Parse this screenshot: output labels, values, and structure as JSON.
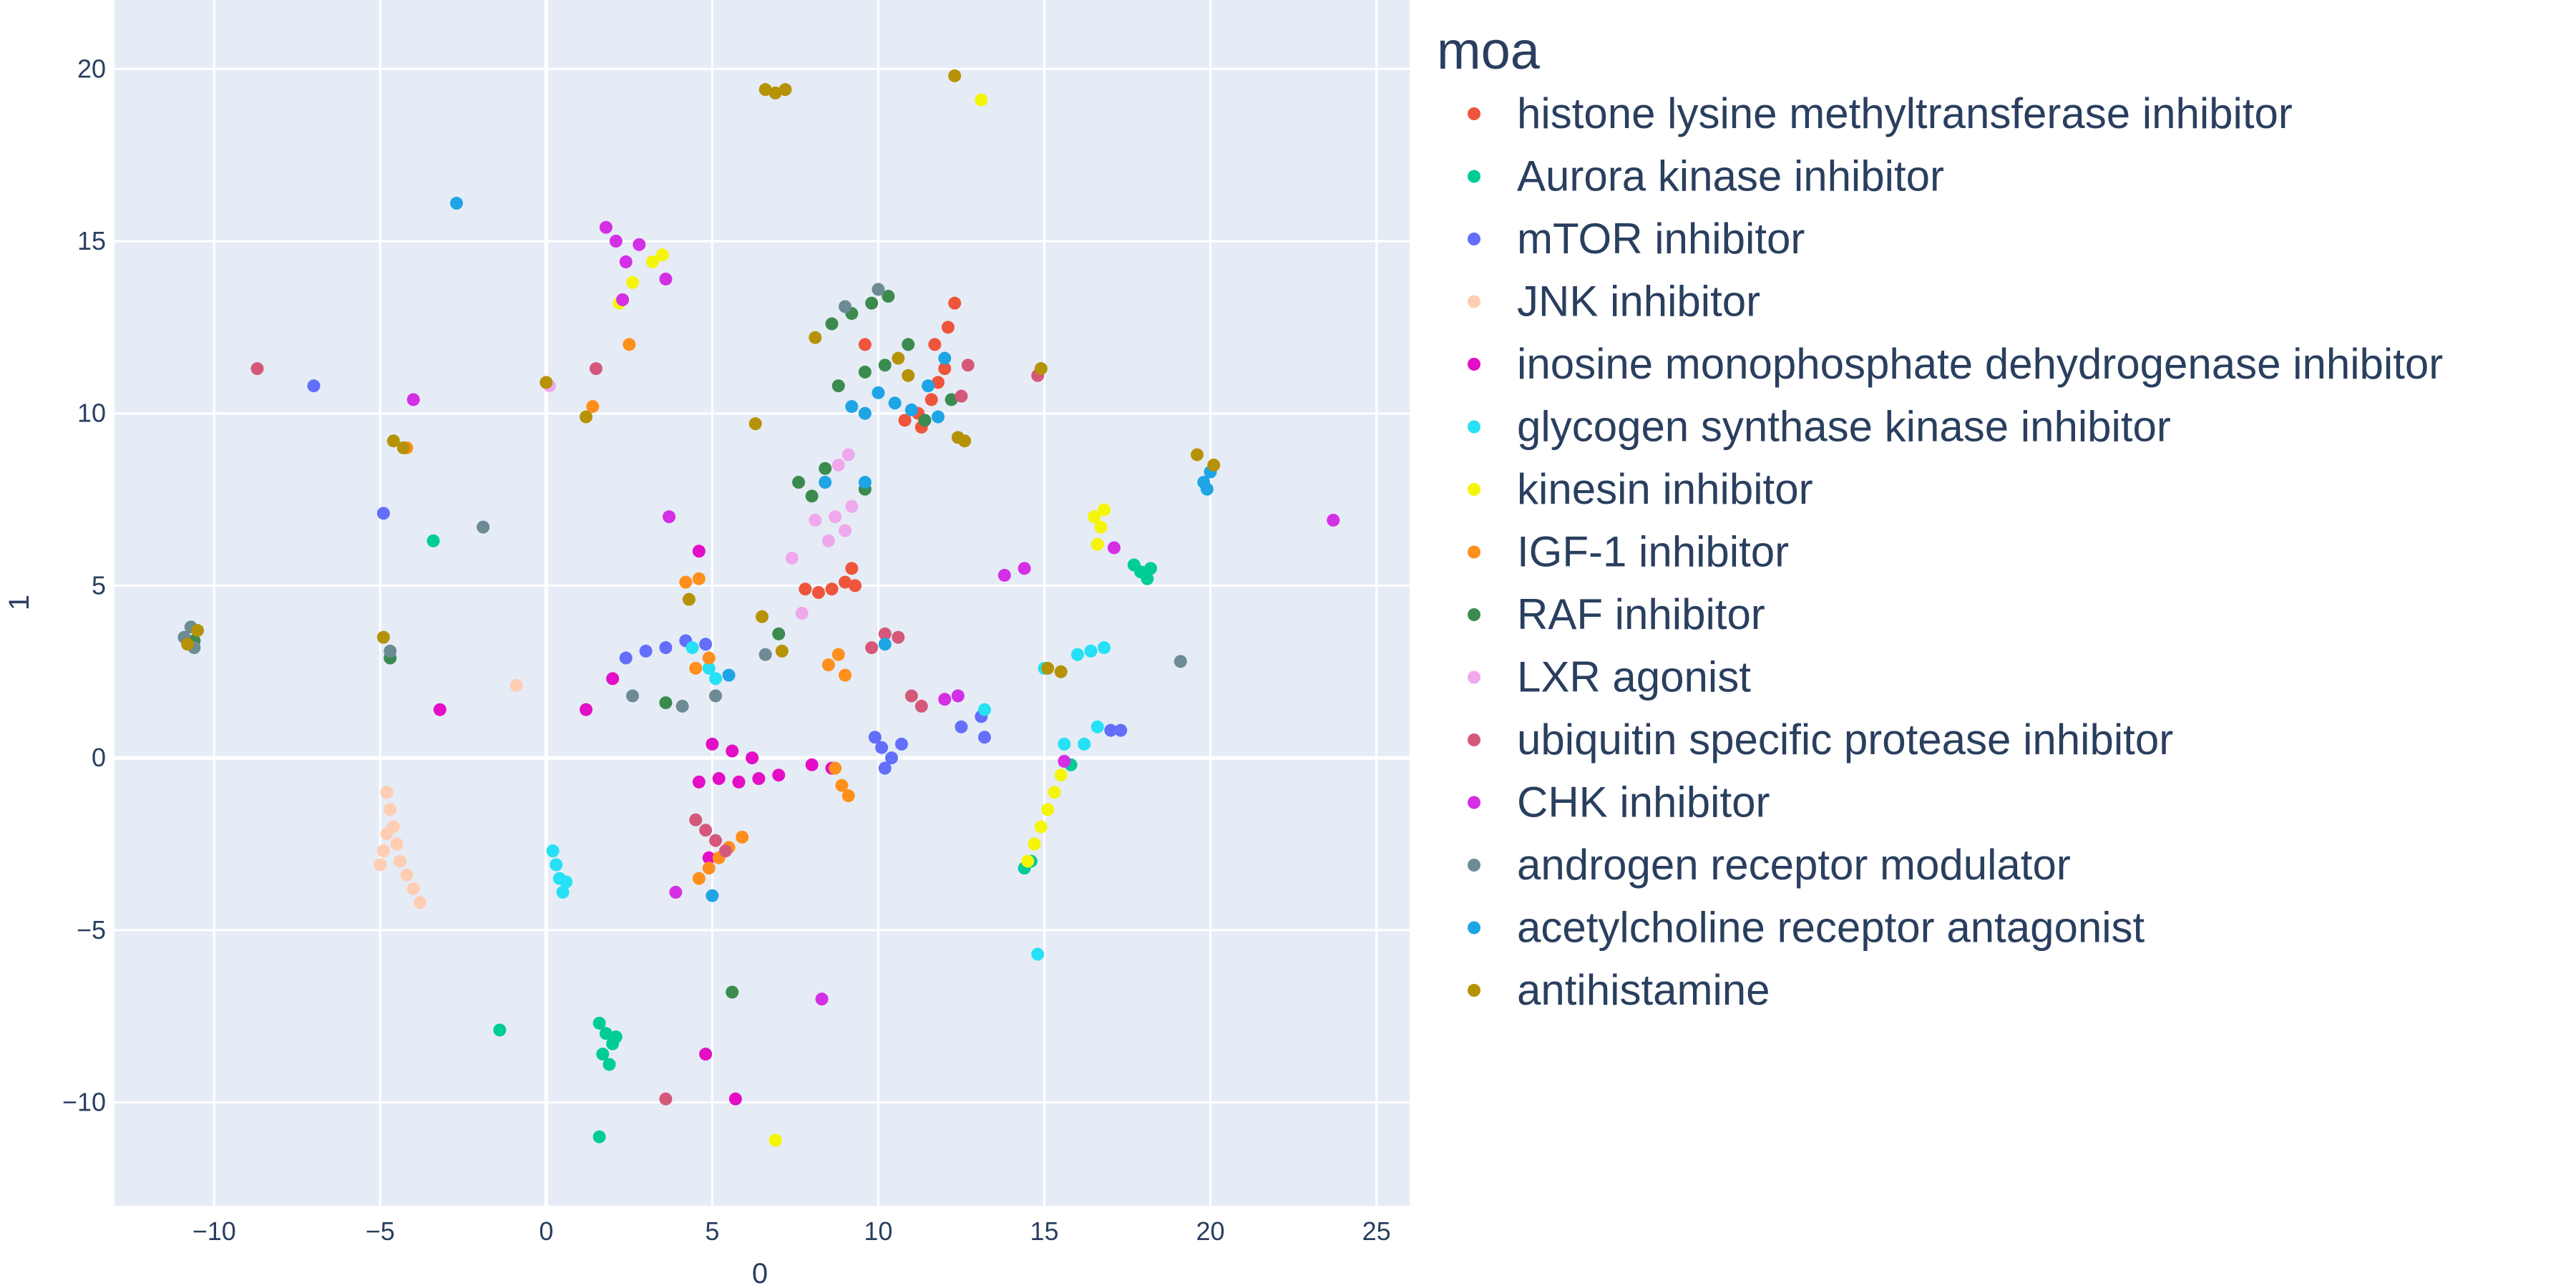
{
  "chart_data": {
    "type": "scatter",
    "xlabel": "0",
    "ylabel": "1",
    "xlim": [
      -13,
      26
    ],
    "ylim": [
      -13,
      22
    ],
    "x_ticks": [
      -10,
      -5,
      0,
      5,
      10,
      15,
      20,
      25
    ],
    "y_ticks": [
      -10,
      -5,
      0,
      5,
      10,
      15,
      20
    ],
    "x_tick_labels": [
      "−10",
      "−5",
      "0",
      "5",
      "10",
      "15",
      "20",
      "25"
    ],
    "y_tick_labels": [
      "−10",
      "−5",
      "0",
      "5",
      "10",
      "15",
      "20"
    ],
    "grid": true,
    "legend": {
      "title": "moa",
      "placement": "right"
    },
    "plot_background": "#e5ecf6",
    "series": [
      {
        "name": "histone lysine methyltransferase inhibitor",
        "color": "#EF553B",
        "points": [
          [
            7.8,
            4.9
          ],
          [
            8.2,
            4.8
          ],
          [
            8.6,
            4.9
          ],
          [
            9.0,
            5.1
          ],
          [
            9.2,
            5.5
          ],
          [
            9.3,
            5.0
          ],
          [
            11.2,
            10.0
          ],
          [
            11.6,
            10.4
          ],
          [
            11.8,
            10.9
          ],
          [
            12.0,
            11.3
          ],
          [
            11.7,
            12.0
          ],
          [
            12.1,
            12.5
          ],
          [
            12.3,
            13.2
          ],
          [
            9.6,
            12.0
          ],
          [
            10.8,
            9.8
          ],
          [
            11.3,
            9.6
          ]
        ]
      },
      {
        "name": "Aurora kinase inhibitor",
        "color": "#00CC96",
        "points": [
          [
            1.6,
            -7.7
          ],
          [
            1.8,
            -8.0
          ],
          [
            2.0,
            -8.3
          ],
          [
            1.7,
            -8.6
          ],
          [
            1.9,
            -8.9
          ],
          [
            2.1,
            -8.1
          ],
          [
            -1.4,
            -7.9
          ],
          [
            1.6,
            -11.0
          ],
          [
            -3.4,
            6.3
          ],
          [
            17.7,
            5.6
          ],
          [
            17.9,
            5.4
          ],
          [
            18.1,
            5.2
          ],
          [
            18.2,
            5.5
          ],
          [
            14.4,
            -3.2
          ],
          [
            14.6,
            -3.0
          ],
          [
            15.8,
            -0.2
          ]
        ]
      },
      {
        "name": "mTOR inhibitor",
        "color": "#636EFA",
        "points": [
          [
            -7.0,
            10.8
          ],
          [
            -4.9,
            7.1
          ],
          [
            2.4,
            2.9
          ],
          [
            3.0,
            3.1
          ],
          [
            3.6,
            3.2
          ],
          [
            4.2,
            3.4
          ],
          [
            4.8,
            3.3
          ],
          [
            9.9,
            0.6
          ],
          [
            10.1,
            0.3
          ],
          [
            10.4,
            0.0
          ],
          [
            10.7,
            0.4
          ],
          [
            10.2,
            -0.3
          ],
          [
            13.1,
            1.2
          ],
          [
            13.2,
            0.6
          ],
          [
            17.0,
            0.8
          ],
          [
            17.3,
            0.8
          ],
          [
            12.5,
            0.9
          ]
        ]
      },
      {
        "name": "JNK inhibitor",
        "color": "#FFCDB2",
        "points": [
          [
            -4.8,
            -1.0
          ],
          [
            -4.7,
            -1.5
          ],
          [
            -4.6,
            -2.0
          ],
          [
            -4.5,
            -2.5
          ],
          [
            -4.4,
            -3.0
          ],
          [
            -4.2,
            -3.4
          ],
          [
            -4.0,
            -3.8
          ],
          [
            -3.8,
            -4.2
          ],
          [
            -4.9,
            -2.7
          ],
          [
            -5.0,
            -3.1
          ],
          [
            -4.8,
            -2.2
          ],
          [
            -0.9,
            2.1
          ]
        ]
      },
      {
        "name": "inosine monophosphate dehydrogenase inhibitor",
        "color": "#E30EC5",
        "points": [
          [
            5.0,
            0.4
          ],
          [
            5.6,
            0.2
          ],
          [
            6.2,
            0.0
          ],
          [
            4.6,
            -0.7
          ],
          [
            5.2,
            -0.6
          ],
          [
            5.8,
            -0.7
          ],
          [
            6.4,
            -0.6
          ],
          [
            7.0,
            -0.5
          ],
          [
            8.0,
            -0.2
          ],
          [
            8.6,
            -0.3
          ],
          [
            2.0,
            2.3
          ],
          [
            1.2,
            1.4
          ],
          [
            4.8,
            -8.6
          ],
          [
            5.7,
            -9.9
          ],
          [
            -3.2,
            1.4
          ],
          [
            4.9,
            -2.9
          ],
          [
            4.6,
            6.0
          ]
        ]
      },
      {
        "name": "glycogen synthase kinase inhibitor",
        "color": "#26E0F5",
        "points": [
          [
            0.2,
            -2.7
          ],
          [
            0.3,
            -3.1
          ],
          [
            0.4,
            -3.5
          ],
          [
            0.5,
            -3.9
          ],
          [
            0.6,
            -3.6
          ],
          [
            16.0,
            3.0
          ],
          [
            16.4,
            3.1
          ],
          [
            16.8,
            3.2
          ],
          [
            15.0,
            2.6
          ],
          [
            15.6,
            0.4
          ],
          [
            16.2,
            0.4
          ],
          [
            16.6,
            0.9
          ],
          [
            13.2,
            1.4
          ],
          [
            4.4,
            3.2
          ],
          [
            4.9,
            2.6
          ],
          [
            5.1,
            2.3
          ],
          [
            14.8,
            -5.7
          ]
        ]
      },
      {
        "name": "kinesin inhibitor",
        "color": "#F5F507",
        "points": [
          [
            14.5,
            -3.0
          ],
          [
            14.7,
            -2.5
          ],
          [
            14.9,
            -2.0
          ],
          [
            15.1,
            -1.5
          ],
          [
            15.3,
            -1.0
          ],
          [
            15.5,
            -0.5
          ],
          [
            16.6,
            6.2
          ],
          [
            16.7,
            6.7
          ],
          [
            16.8,
            7.2
          ],
          [
            16.5,
            7.0
          ],
          [
            13.1,
            19.1
          ],
          [
            6.9,
            -11.1
          ],
          [
            2.2,
            13.2
          ],
          [
            2.6,
            13.8
          ],
          [
            3.2,
            14.4
          ],
          [
            3.5,
            14.6
          ]
        ]
      },
      {
        "name": "IGF-1 inhibitor",
        "color": "#FF8F1C",
        "points": [
          [
            4.6,
            -3.5
          ],
          [
            4.9,
            -3.2
          ],
          [
            5.2,
            -2.9
          ],
          [
            5.5,
            -2.6
          ],
          [
            5.9,
            -2.3
          ],
          [
            4.2,
            5.1
          ],
          [
            4.6,
            5.2
          ],
          [
            4.5,
            2.6
          ],
          [
            4.9,
            2.9
          ],
          [
            8.5,
            2.7
          ],
          [
            8.8,
            3.0
          ],
          [
            9.0,
            2.4
          ],
          [
            8.7,
            -0.3
          ],
          [
            8.9,
            -0.8
          ],
          [
            9.1,
            -1.1
          ],
          [
            -4.2,
            9.0
          ],
          [
            2.5,
            12.0
          ],
          [
            1.4,
            10.2
          ]
        ]
      },
      {
        "name": "RAF inhibitor",
        "color": "#3B8B4F",
        "points": [
          [
            8.6,
            12.6
          ],
          [
            9.2,
            12.9
          ],
          [
            9.8,
            13.2
          ],
          [
            10.3,
            13.4
          ],
          [
            10.9,
            12.0
          ],
          [
            10.2,
            11.4
          ],
          [
            9.6,
            11.2
          ],
          [
            8.8,
            10.8
          ],
          [
            8.4,
            8.4
          ],
          [
            7.6,
            8.0
          ],
          [
            8.0,
            7.6
          ],
          [
            11.4,
            9.8
          ],
          [
            12.2,
            10.4
          ],
          [
            -10.6,
            3.4
          ],
          [
            -4.7,
            2.9
          ],
          [
            5.6,
            -6.8
          ],
          [
            3.6,
            1.6
          ],
          [
            7.0,
            3.6
          ],
          [
            9.6,
            7.8
          ]
        ]
      },
      {
        "name": "LXR agonist",
        "color": "#F0A8EC",
        "points": [
          [
            8.7,
            7.0
          ],
          [
            9.0,
            6.6
          ],
          [
            8.5,
            6.3
          ],
          [
            9.2,
            7.3
          ],
          [
            7.4,
            5.8
          ],
          [
            8.1,
            6.9
          ],
          [
            9.1,
            8.8
          ],
          [
            8.8,
            8.5
          ],
          [
            7.7,
            4.2
          ],
          [
            0.1,
            10.8
          ]
        ]
      },
      {
        "name": "ubiquitin specific protease inhibitor",
        "color": "#D5587A",
        "points": [
          [
            -8.7,
            11.3
          ],
          [
            4.5,
            -1.8
          ],
          [
            4.8,
            -2.1
          ],
          [
            5.1,
            -2.4
          ],
          [
            5.4,
            -2.7
          ],
          [
            9.8,
            3.2
          ],
          [
            10.2,
            3.6
          ],
          [
            10.6,
            3.5
          ],
          [
            14.8,
            11.1
          ],
          [
            12.7,
            11.4
          ],
          [
            12.5,
            10.5
          ],
          [
            3.6,
            -9.9
          ],
          [
            1.5,
            11.3
          ],
          [
            11.0,
            1.8
          ],
          [
            11.3,
            1.5
          ]
        ]
      },
      {
        "name": "CHK inhibitor",
        "color": "#D42FE4",
        "points": [
          [
            1.8,
            15.4
          ],
          [
            2.1,
            15.0
          ],
          [
            2.4,
            14.4
          ],
          [
            2.8,
            14.9
          ],
          [
            3.6,
            13.9
          ],
          [
            2.3,
            13.3
          ],
          [
            -4.0,
            10.4
          ],
          [
            3.7,
            7.0
          ],
          [
            8.3,
            -7.0
          ],
          [
            23.7,
            6.9
          ],
          [
            13.8,
            5.3
          ],
          [
            14.4,
            5.5
          ],
          [
            12.0,
            1.7
          ],
          [
            12.4,
            1.8
          ],
          [
            15.6,
            -0.1
          ],
          [
            3.9,
            -3.9
          ],
          [
            17.1,
            6.1
          ]
        ]
      },
      {
        "name": "androgen receptor modulator",
        "color": "#6C8B95",
        "points": [
          [
            -10.7,
            3.8
          ],
          [
            -10.6,
            3.2
          ],
          [
            -10.9,
            3.5
          ],
          [
            -1.9,
            6.7
          ],
          [
            19.1,
            2.8
          ],
          [
            4.1,
            1.5
          ],
          [
            9.0,
            13.1
          ],
          [
            10.0,
            13.6
          ],
          [
            6.6,
            3.0
          ],
          [
            5.1,
            1.8
          ],
          [
            -4.7,
            3.1
          ],
          [
            2.6,
            1.8
          ]
        ]
      },
      {
        "name": "acetylcholine receptor antagonist",
        "color": "#1FA5E5",
        "points": [
          [
            -2.7,
            16.1
          ],
          [
            9.2,
            10.2
          ],
          [
            9.6,
            10.0
          ],
          [
            10.0,
            10.6
          ],
          [
            10.5,
            10.3
          ],
          [
            11.0,
            10.1
          ],
          [
            11.5,
            10.8
          ],
          [
            11.8,
            9.9
          ],
          [
            12.0,
            11.6
          ],
          [
            19.8,
            8.0
          ],
          [
            19.9,
            7.8
          ],
          [
            20.0,
            8.3
          ],
          [
            5.0,
            -4.0
          ],
          [
            5.5,
            2.4
          ],
          [
            8.4,
            8.0
          ],
          [
            9.6,
            8.0
          ],
          [
            10.2,
            3.3
          ]
        ]
      },
      {
        "name": "antihistamine",
        "color": "#B69208",
        "points": [
          [
            6.6,
            19.4
          ],
          [
            6.9,
            19.3
          ],
          [
            7.2,
            19.4
          ],
          [
            12.3,
            19.8
          ],
          [
            -10.8,
            3.3
          ],
          [
            -10.5,
            3.7
          ],
          [
            -4.9,
            3.5
          ],
          [
            -4.6,
            9.2
          ],
          [
            -4.3,
            9.0
          ],
          [
            0.0,
            10.9
          ],
          [
            6.3,
            9.7
          ],
          [
            14.9,
            11.3
          ],
          [
            15.1,
            2.6
          ],
          [
            15.5,
            2.5
          ],
          [
            12.4,
            9.3
          ],
          [
            12.6,
            9.2
          ],
          [
            10.6,
            11.6
          ],
          [
            10.9,
            11.1
          ],
          [
            19.6,
            8.8
          ],
          [
            20.1,
            8.5
          ],
          [
            6.5,
            4.1
          ],
          [
            7.1,
            3.1
          ],
          [
            8.1,
            12.2
          ],
          [
            1.2,
            9.9
          ],
          [
            4.3,
            4.6
          ]
        ]
      }
    ]
  }
}
